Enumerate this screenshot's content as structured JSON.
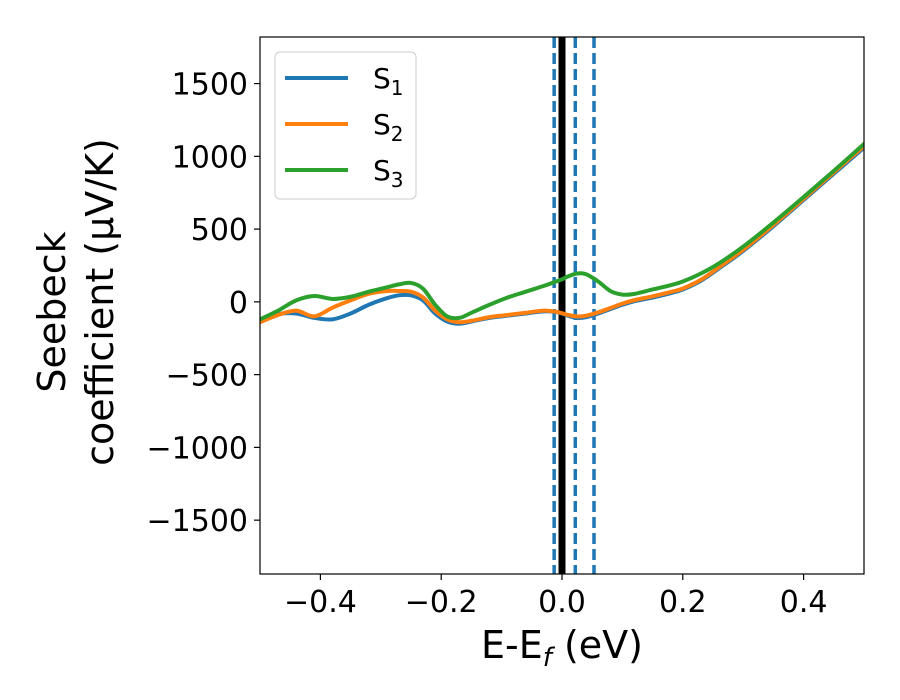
{
  "chart_data": {
    "type": "line",
    "xlabel": {
      "main": "E-E",
      "sub": "f",
      "unit": " (eV)"
    },
    "ylabel": {
      "line1": "Seebeck",
      "line2": "coefficient  (μV/K)"
    },
    "xlim": [
      -0.5,
      0.5
    ],
    "ylim": [
      -1870,
      1820
    ],
    "xticks": [
      -0.4,
      -0.2,
      0.0,
      0.2,
      0.4
    ],
    "xtick_labels": [
      "−0.4",
      "−0.2",
      "0.0",
      "0.2",
      "0.4"
    ],
    "yticks": [
      1500,
      1000,
      500,
      0,
      -500,
      -1000,
      -1500
    ],
    "ytick_labels": [
      "1500",
      "1000",
      "500",
      "0",
      "−500",
      "−1000",
      "−1500"
    ],
    "grid": false,
    "legend": {
      "position": "top-left"
    },
    "vlines": [
      {
        "x": 0.0,
        "style": "solid",
        "color": "#000000"
      },
      {
        "x": -0.013,
        "style": "dashed",
        "color": "#1f77b4"
      },
      {
        "x": 0.022,
        "style": "dashed",
        "color": "#1f77b4"
      },
      {
        "x": 0.053,
        "style": "dashed",
        "color": "#1f77b4"
      }
    ],
    "series": [
      {
        "name": "S",
        "sub": "1",
        "color": "#1f77b4",
        "x": [
          -0.5,
          -0.47,
          -0.44,
          -0.41,
          -0.38,
          -0.35,
          -0.32,
          -0.29,
          -0.27,
          -0.25,
          -0.23,
          -0.21,
          -0.19,
          -0.17,
          -0.15,
          -0.12,
          -0.09,
          -0.06,
          -0.03,
          -0.01,
          0.0,
          0.01,
          0.025,
          0.04,
          0.06,
          0.08,
          0.1,
          0.12,
          0.15,
          0.18,
          0.2,
          0.23,
          0.26,
          0.3,
          0.35,
          0.4,
          0.45,
          0.5
        ],
        "y": [
          -140,
          -85,
          -80,
          -110,
          -120,
          -80,
          -20,
          25,
          45,
          45,
          10,
          -80,
          -135,
          -150,
          -135,
          -110,
          -95,
          -80,
          -65,
          -70,
          -80,
          -95,
          -110,
          -105,
          -80,
          -50,
          -20,
          5,
          30,
          60,
          85,
          145,
          230,
          350,
          520,
          700,
          880,
          1060
        ]
      },
      {
        "name": "S",
        "sub": "2",
        "color": "#ff7f0e",
        "x": [
          -0.5,
          -0.47,
          -0.44,
          -0.41,
          -0.38,
          -0.35,
          -0.32,
          -0.29,
          -0.27,
          -0.25,
          -0.23,
          -0.21,
          -0.19,
          -0.17,
          -0.15,
          -0.12,
          -0.09,
          -0.06,
          -0.03,
          -0.01,
          0.0,
          0.01,
          0.025,
          0.04,
          0.06,
          0.08,
          0.1,
          0.12,
          0.15,
          0.18,
          0.2,
          0.23,
          0.26,
          0.3,
          0.35,
          0.4,
          0.45,
          0.5
        ],
        "y": [
          -140,
          -90,
          -60,
          -100,
          -40,
          10,
          55,
          75,
          75,
          70,
          30,
          -60,
          -120,
          -140,
          -130,
          -105,
          -90,
          -75,
          -60,
          -68,
          -78,
          -90,
          -100,
          -95,
          -72,
          -42,
          -12,
          12,
          38,
          68,
          92,
          152,
          238,
          358,
          528,
          708,
          890,
          1070
        ]
      },
      {
        "name": "S",
        "sub": "3",
        "color": "#2ca02c",
        "x": [
          -0.5,
          -0.47,
          -0.44,
          -0.41,
          -0.38,
          -0.35,
          -0.32,
          -0.29,
          -0.27,
          -0.25,
          -0.23,
          -0.21,
          -0.19,
          -0.17,
          -0.15,
          -0.12,
          -0.09,
          -0.06,
          -0.03,
          -0.01,
          0.0,
          0.01,
          0.025,
          0.04,
          0.06,
          0.08,
          0.1,
          0.12,
          0.15,
          0.18,
          0.2,
          0.23,
          0.26,
          0.3,
          0.35,
          0.4,
          0.45,
          0.5
        ],
        "y": [
          -120,
          -60,
          10,
          40,
          20,
          35,
          70,
          100,
          120,
          130,
          90,
          -20,
          -100,
          -110,
          -75,
          -20,
          30,
          70,
          110,
          140,
          155,
          175,
          195,
          190,
          140,
          75,
          50,
          55,
          85,
          115,
          140,
          195,
          265,
          380,
          545,
          720,
          900,
          1085
        ]
      }
    ]
  }
}
